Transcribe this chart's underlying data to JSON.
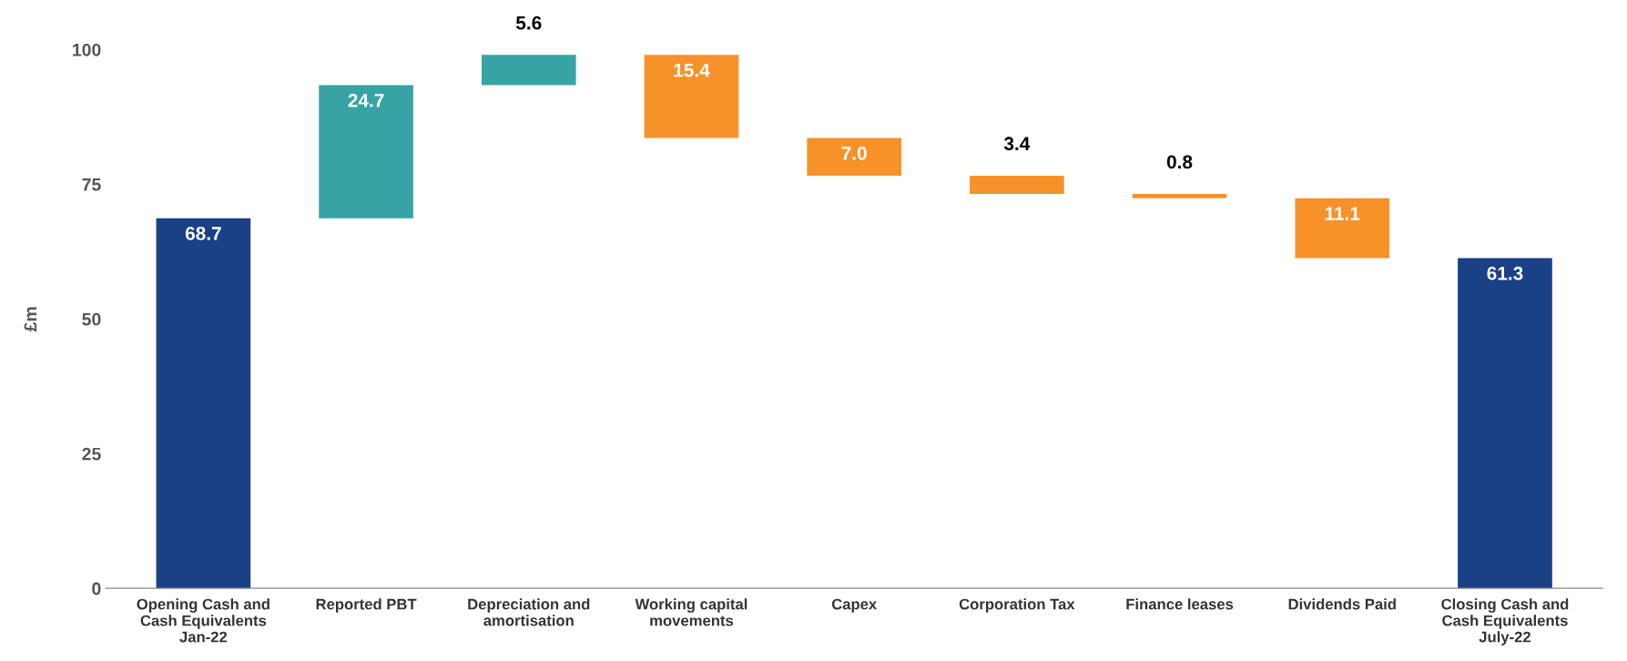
{
  "chart_data": {
    "type": "bar",
    "ylabel": "£m",
    "categories": [
      "Opening Cash and\nCash Equivalents\nJan-22",
      "Reported PBT",
      "Depreciation and\namortisation",
      "Working capital\nmovements",
      "Capex",
      "Corporation Tax",
      "Finance leases",
      "Dividends Paid",
      "Closing Cash and\nCash Equivalents\nJuly-22"
    ],
    "values": [
      68.7,
      24.7,
      5.6,
      -15.4,
      -7.0,
      -3.4,
      -0.8,
      -11.1,
      61.3
    ],
    "base": [
      0,
      68.7,
      93.4,
      99.0,
      83.6,
      76.6,
      73.2,
      72.4,
      0
    ],
    "colors": [
      "#1a4086",
      "#38a3a5",
      "#38a3a5",
      "#f7922a",
      "#f7922a",
      "#f7922a",
      "#f7922a",
      "#f7922a",
      "#1a4086"
    ],
    "value_labels": [
      "68.7",
      "24.7",
      "5.6",
      "15.4",
      "7.0",
      "3.4",
      "0.8",
      "11.1",
      "61.3"
    ],
    "ylim": [
      0,
      100
    ],
    "yticks": [
      0,
      25,
      50,
      75,
      100
    ],
    "grid": false
  }
}
